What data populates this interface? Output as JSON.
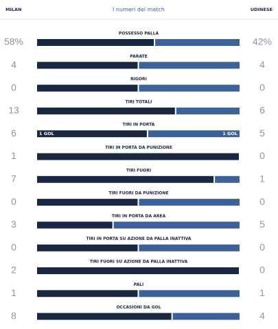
{
  "header": {
    "home_team": "MILAN",
    "title": "I numeri del match",
    "away_team": "UDINESE"
  },
  "stats": [
    {
      "label": "POSSESSO PALLA",
      "home": 58,
      "away": 42,
      "home_label": "58%",
      "away_label": "42%"
    },
    {
      "label": "PARATE",
      "home": 4,
      "away": 4
    },
    {
      "label": "RIGORI",
      "home": 0,
      "away": 0
    },
    {
      "label": "TIRI TOTALI",
      "home": 13,
      "away": 6
    },
    {
      "label": "TIRI IN PORTA",
      "home": 6,
      "away": 5,
      "home_note": "1 GOL",
      "away_note": "1 GOL"
    },
    {
      "label": "TIRI IN PORTA DA PUNIZIONE",
      "home": 1,
      "away": 0
    },
    {
      "label": "TIRI FUORI",
      "home": 7,
      "away": 1
    },
    {
      "label": "TIRI FUORI DA PUNIZIONE",
      "home": 0,
      "away": 0
    },
    {
      "label": "TIRI IN PORTA DA AREA",
      "home": 3,
      "away": 5
    },
    {
      "label": "TIRI IN PORTA SU AZIONE DA PALLA INATTIVA",
      "home": 0,
      "away": 0
    },
    {
      "label": "TIRI FUORI SU AZIONE DA PALLA INATTIVA",
      "home": 2,
      "away": 0
    },
    {
      "label": "PALI",
      "home": 1,
      "away": 1
    },
    {
      "label": "OCCASIONI DA GOL",
      "home": 8,
      "away": 4
    }
  ]
}
